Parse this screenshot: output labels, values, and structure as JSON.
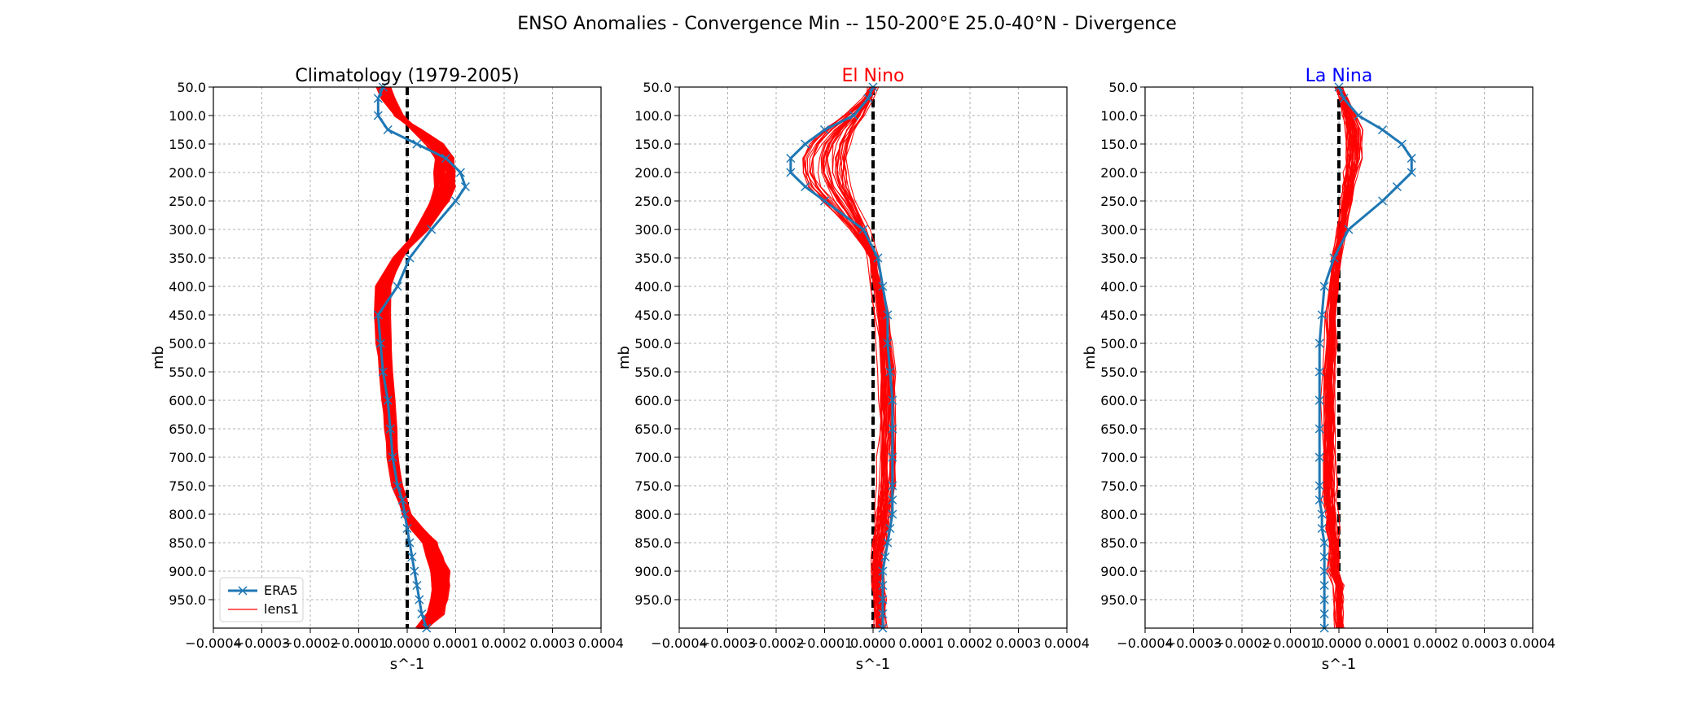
{
  "figure": {
    "title": "ENSO Anomalies - Convergence Min -- 150-200°E 25.0-40°N - Divergence"
  },
  "colors": {
    "era5": "#1f77b4",
    "lens1": "#ff0000",
    "zero_line": "#000000",
    "elnino_title": "#ff0000",
    "lanina_title": "#0000ff",
    "clim_title": "#000000"
  },
  "chart_data": [
    {
      "type": "line",
      "title": "Climatology (1979-2005)",
      "xlabel": "s^-1",
      "ylabel": "mb",
      "xlim": [
        -0.0004,
        0.0004
      ],
      "ylim": [
        1000,
        50
      ],
      "y_inverted": true,
      "grid": true,
      "legend": "lower-left",
      "x_ticks": [
        "−0.0004",
        "−0.0003",
        "−0.0002",
        "−0.0001",
        "0.0000",
        "0.0001",
        "0.0002",
        "0.0003",
        "0.0004"
      ],
      "y_ticks": [
        "50.0",
        "100.0",
        "150.0",
        "200.0",
        "250.0",
        "300.0",
        "350.0",
        "400.0",
        "450.0",
        "500.0",
        "550.0",
        "600.0",
        "650.0",
        "700.0",
        "750.0",
        "800.0",
        "850.0",
        "900.0",
        "950.0"
      ],
      "levels": [
        50,
        70,
        100,
        125,
        150,
        175,
        200,
        225,
        250,
        300,
        350,
        400,
        450,
        500,
        550,
        600,
        650,
        700,
        750,
        775,
        800,
        825,
        850,
        875,
        900,
        925,
        950,
        975,
        1000
      ],
      "series": [
        {
          "name": "ERA5",
          "values": [
            -5e-05,
            -6e-05,
            -6e-05,
            -4e-05,
            2e-05,
            8e-05,
            0.00011,
            0.00012,
            0.0001,
            5e-05,
            5e-06,
            -2e-05,
            -6e-05,
            -5.5e-05,
            -5e-05,
            -4e-05,
            -3.5e-05,
            -3e-05,
            -2e-05,
            -1e-05,
            -5e-06,
            0.0,
            5e-06,
            1e-05,
            1.5e-05,
            2e-05,
            2.5e-05,
            3e-05,
            4e-05
          ]
        },
        {
          "name": "lens1",
          "values": [
            -5e-05,
            -4e-05,
            -2e-05,
            2e-05,
            6e-05,
            8e-05,
            8e-05,
            8e-05,
            7e-05,
            3e-05,
            -2e-05,
            -5e-05,
            -5.5e-05,
            -5e-05,
            -4.5e-05,
            -4e-05,
            -3.5e-05,
            -3e-05,
            -2e-05,
            -1e-05,
            0.0,
            2e-05,
            5e-05,
            6e-05,
            7e-05,
            7e-05,
            7e-05,
            6e-05,
            3e-05
          ]
        }
      ]
    },
    {
      "type": "line",
      "title": "El Nino",
      "xlabel": "s^-1",
      "ylabel": "mb",
      "xlim": [
        -0.0004,
        0.0004
      ],
      "ylim": [
        1000,
        50
      ],
      "y_inverted": true,
      "grid": true,
      "x_ticks": [
        "−0.0004",
        "−0.0003",
        "−0.0002",
        "−0.0001",
        "0.0000",
        "0.0001",
        "0.0002",
        "0.0003",
        "0.0004"
      ],
      "y_ticks": [
        "50.0",
        "100.0",
        "150.0",
        "200.0",
        "250.0",
        "300.0",
        "350.0",
        "400.0",
        "450.0",
        "500.0",
        "550.0",
        "600.0",
        "650.0",
        "700.0",
        "750.0",
        "800.0",
        "850.0",
        "900.0",
        "950.0"
      ],
      "levels": [
        50,
        70,
        100,
        125,
        150,
        175,
        200,
        225,
        250,
        300,
        350,
        400,
        450,
        500,
        550,
        600,
        650,
        700,
        750,
        775,
        800,
        825,
        850,
        875,
        900,
        925,
        950,
        975,
        1000
      ],
      "series": [
        {
          "name": "ERA5",
          "values": [
            0.0,
            -1e-05,
            -4e-05,
            -0.0001,
            -0.00014,
            -0.00017,
            -0.00017,
            -0.00014,
            -0.0001,
            -2e-05,
            1e-05,
            2e-05,
            3e-05,
            3e-05,
            3.5e-05,
            4e-05,
            4e-05,
            4e-05,
            4e-05,
            4e-05,
            4e-05,
            3.5e-05,
            3e-05,
            2.5e-05,
            2e-05,
            2e-05,
            2e-05,
            2e-05,
            2e-05
          ]
        },
        {
          "name": "lens1",
          "values": [
            0.0,
            -1e-05,
            -4e-05,
            -7e-05,
            -9e-05,
            -0.0001,
            -0.0001,
            -9e-05,
            -7e-05,
            -3e-05,
            0.0,
            1e-05,
            2e-05,
            2.5e-05,
            3e-05,
            3e-05,
            3e-05,
            3e-05,
            3e-05,
            2.5e-05,
            2e-05,
            2e-05,
            1.5e-05,
            1e-05,
            1e-05,
            1e-05,
            1.5e-05,
            1.5e-05,
            1.5e-05
          ]
        }
      ]
    },
    {
      "type": "line",
      "title": "La Nina",
      "xlabel": "s^-1",
      "ylabel": "mb",
      "xlim": [
        -0.0004,
        0.0004
      ],
      "ylim": [
        1000,
        50
      ],
      "y_inverted": true,
      "grid": true,
      "x_ticks": [
        "−0.0004",
        "−0.0003",
        "−0.0002",
        "−0.0001",
        "0.0000",
        "0.0001",
        "0.0002",
        "0.0003",
        "0.0004"
      ],
      "y_ticks": [
        "50.0",
        "100.0",
        "150.0",
        "200.0",
        "250.0",
        "300.0",
        "350.0",
        "400.0",
        "450.0",
        "500.0",
        "550.0",
        "600.0",
        "650.0",
        "700.0",
        "750.0",
        "800.0",
        "850.0",
        "900.0",
        "950.0"
      ],
      "levels": [
        50,
        70,
        100,
        125,
        150,
        175,
        200,
        225,
        250,
        300,
        350,
        400,
        450,
        500,
        550,
        600,
        650,
        700,
        750,
        775,
        800,
        825,
        850,
        875,
        900,
        925,
        950,
        975,
        1000
      ],
      "series": [
        {
          "name": "ERA5",
          "values": [
            0.0,
            1e-05,
            4e-05,
            9e-05,
            0.00013,
            0.00015,
            0.00015,
            0.00012,
            9e-05,
            2e-05,
            -1e-05,
            -3e-05,
            -3.5e-05,
            -4e-05,
            -4e-05,
            -4e-05,
            -4e-05,
            -4e-05,
            -4e-05,
            -4e-05,
            -3.5e-05,
            -3.5e-05,
            -3e-05,
            -3e-05,
            -3e-05,
            -3e-05,
            -3e-05,
            -3e-05,
            -3e-05
          ]
        },
        {
          "name": "lens1",
          "values": [
            0.0,
            1e-05,
            2e-05,
            3e-05,
            3e-05,
            3e-05,
            2.5e-05,
            2e-05,
            1.5e-05,
            5e-06,
            -5e-06,
            -1e-05,
            -1.5e-05,
            -1.5e-05,
            -2e-05,
            -2e-05,
            -2e-05,
            -2e-05,
            -2e-05,
            -2e-05,
            -1.5e-05,
            -1.5e-05,
            -1e-05,
            -1e-05,
            -1e-05,
            0.0,
            0.0,
            0.0,
            0.0
          ]
        }
      ]
    }
  ],
  "legend": {
    "era5_label": "ERA5",
    "lens1_label": "lens1"
  }
}
